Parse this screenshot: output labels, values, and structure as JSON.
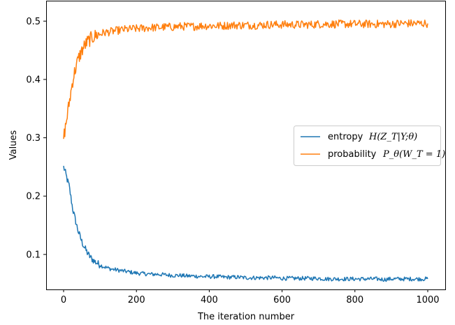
{
  "chart_data": {
    "type": "line",
    "title": "",
    "xlabel": "The iteration number",
    "ylabel": "Values",
    "xlim": [
      -48,
      1048
    ],
    "ylim": [
      0.04,
      0.535
    ],
    "xticks": [
      0,
      200,
      400,
      600,
      800,
      1000
    ],
    "xtick_labels": [
      "0",
      "200",
      "400",
      "600",
      "800",
      "1000"
    ],
    "yticks": [
      0.1,
      0.2,
      0.3,
      0.4,
      0.5
    ],
    "ytick_labels": [
      "0.1",
      "0.2",
      "0.3",
      "0.4",
      "0.5"
    ],
    "grid": false,
    "legend_position": "center-right",
    "series": [
      {
        "name": "entropy H(Z_T|Y;θ)",
        "legend_prefix": "entropy",
        "legend_math": "H(Z_T|Y;θ)",
        "color": "#1f77b4",
        "x": [
          0,
          5,
          10,
          15,
          20,
          25,
          30,
          35,
          40,
          45,
          50,
          55,
          60,
          65,
          70,
          75,
          80,
          85,
          90,
          95,
          100,
          110,
          120,
          130,
          140,
          150,
          160,
          170,
          180,
          190,
          200,
          220,
          240,
          260,
          280,
          300,
          320,
          340,
          360,
          380,
          400,
          420,
          440,
          460,
          480,
          500,
          520,
          540,
          560,
          580,
          600,
          620,
          640,
          660,
          680,
          700,
          720,
          740,
          760,
          780,
          800,
          820,
          840,
          860,
          880,
          900,
          920,
          940,
          960,
          980,
          1000
        ],
        "y": [
          0.25,
          0.24,
          0.228,
          0.218,
          0.198,
          0.178,
          0.165,
          0.152,
          0.14,
          0.131,
          0.122,
          0.115,
          0.109,
          0.103,
          0.098,
          0.094,
          0.091,
          0.088,
          0.086,
          0.084,
          0.082,
          0.079,
          0.077,
          0.075,
          0.074,
          0.073,
          0.072,
          0.071,
          0.07,
          0.069,
          0.068,
          0.067,
          0.066,
          0.066,
          0.065,
          0.064,
          0.064,
          0.063,
          0.063,
          0.062,
          0.062,
          0.062,
          0.061,
          0.061,
          0.061,
          0.06,
          0.06,
          0.06,
          0.06,
          0.06,
          0.059,
          0.059,
          0.059,
          0.059,
          0.059,
          0.059,
          0.058,
          0.058,
          0.058,
          0.058,
          0.058,
          0.058,
          0.058,
          0.058,
          0.057,
          0.058,
          0.058,
          0.058,
          0.058,
          0.058,
          0.058
        ]
      },
      {
        "name": "probability P_θ(W_T = 1)",
        "legend_prefix": "probability",
        "legend_math": "P_θ(W_T = 1)",
        "color": "#ff7f0e",
        "x": [
          0,
          5,
          10,
          15,
          20,
          25,
          30,
          35,
          40,
          45,
          50,
          55,
          60,
          65,
          70,
          75,
          80,
          85,
          90,
          95,
          100,
          110,
          120,
          130,
          140,
          150,
          160,
          170,
          180,
          190,
          200,
          220,
          240,
          260,
          280,
          300,
          320,
          340,
          360,
          380,
          400,
          420,
          440,
          460,
          480,
          500,
          520,
          540,
          560,
          580,
          600,
          620,
          640,
          660,
          680,
          700,
          720,
          740,
          760,
          780,
          800,
          820,
          840,
          860,
          880,
          900,
          920,
          940,
          960,
          980,
          1000
        ],
        "y": [
          0.3,
          0.318,
          0.338,
          0.358,
          0.378,
          0.398,
          0.412,
          0.424,
          0.434,
          0.442,
          0.449,
          0.455,
          0.46,
          0.464,
          0.467,
          0.47,
          0.472,
          0.474,
          0.476,
          0.477,
          0.478,
          0.48,
          0.481,
          0.482,
          0.483,
          0.484,
          0.485,
          0.486,
          0.486,
          0.487,
          0.487,
          0.488,
          0.489,
          0.489,
          0.49,
          0.49,
          0.491,
          0.491,
          0.491,
          0.492,
          0.492,
          0.492,
          0.492,
          0.493,
          0.493,
          0.493,
          0.493,
          0.493,
          0.494,
          0.494,
          0.494,
          0.494,
          0.494,
          0.494,
          0.494,
          0.495,
          0.495,
          0.495,
          0.495,
          0.495,
          0.495,
          0.495,
          0.495,
          0.495,
          0.495,
          0.495,
          0.496,
          0.496,
          0.496,
          0.496,
          0.496
        ]
      }
    ]
  }
}
